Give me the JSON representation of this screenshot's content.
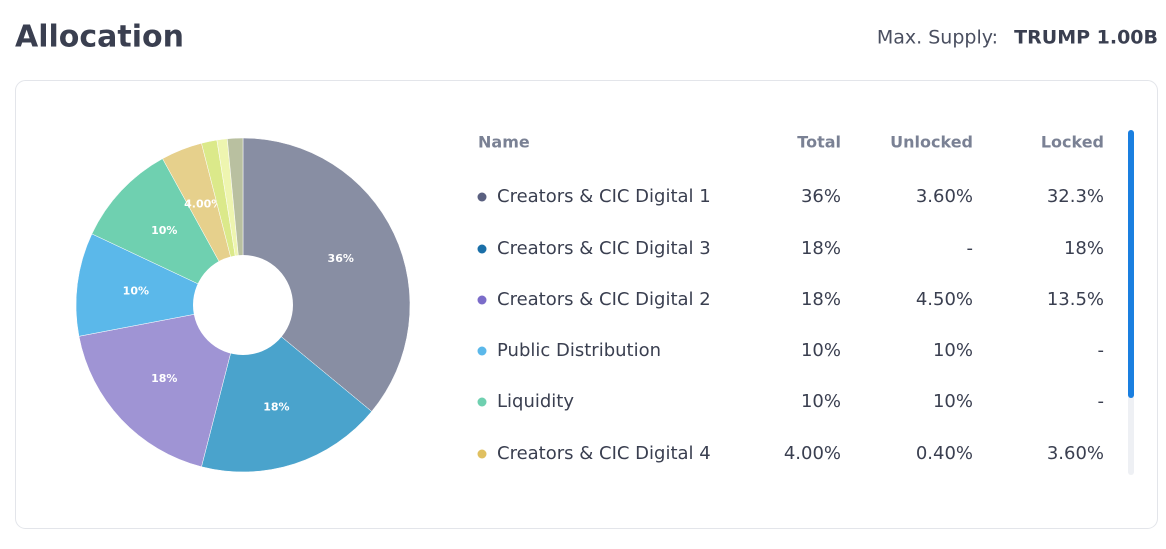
{
  "header": {
    "title": "Allocation",
    "supply_label": "Max. Supply:",
    "supply_value": "TRUMP 1.00B"
  },
  "chart_data": {
    "type": "pie",
    "values": [
      36,
      18,
      18,
      10,
      10,
      4,
      1.5,
      1,
      1.5
    ],
    "value_labels": [
      "36%",
      "18%",
      "18%",
      "10%",
      "10%",
      "4.00%",
      null,
      null,
      null
    ],
    "colors": [
      "#888ea3",
      "#4aa3cc",
      "#9f94d4",
      "#5bb8ea",
      "#6fd0b0",
      "#e6d08c",
      "#dbe98a",
      "#eef5b0",
      "#b9c0a0"
    ]
  },
  "table": {
    "columns": [
      "Name",
      "Total",
      "Unlocked",
      "Locked"
    ],
    "rows": [
      {
        "color": "#5a6080",
        "name": "Creators & CIC Digital 1",
        "total": "36%",
        "unlocked": "3.60%",
        "locked": "32.3%"
      },
      {
        "color": "#1a6fa8",
        "name": "Creators & CIC Digital 3",
        "total": "18%",
        "unlocked": "-",
        "locked": "18%"
      },
      {
        "color": "#7b6cc9",
        "name": "Creators & CIC Digital 2",
        "total": "18%",
        "unlocked": "4.50%",
        "locked": "13.5%"
      },
      {
        "color": "#5bb8ea",
        "name": "Public Distribution",
        "total": "10%",
        "unlocked": "10%",
        "locked": "-"
      },
      {
        "color": "#6fd0b0",
        "name": "Liquidity",
        "total": "10%",
        "unlocked": "10%",
        "locked": "-"
      },
      {
        "color": "#e0c060",
        "name": "Creators & CIC Digital 4",
        "total": "4.00%",
        "unlocked": "0.40%",
        "locked": "3.60%"
      }
    ]
  }
}
